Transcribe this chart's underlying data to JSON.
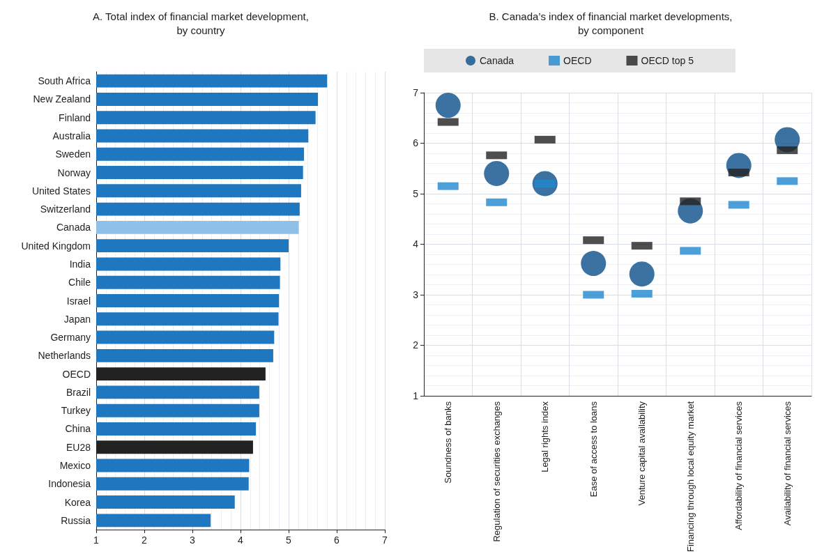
{
  "chart_data": [
    {
      "type": "bar",
      "title": "A. Total index of financial market development,\nby country",
      "orientation": "horizontal",
      "categories": [
        "South Africa",
        "New Zealand",
        "Finland",
        "Australia",
        "Sweden",
        "Norway",
        "United States",
        "Switzerland",
        "Canada",
        "United Kingdom",
        "India",
        "Chile",
        "Israel",
        "Japan",
        "Germany",
        "Netherlands",
        "OECD",
        "Brazil",
        "Turkey",
        "China",
        "EU28",
        "Mexico",
        "Indonesia",
        "Korea",
        "Russia"
      ],
      "values": [
        5.8,
        5.61,
        5.56,
        5.41,
        5.32,
        5.3,
        5.26,
        5.23,
        5.21,
        5.0,
        4.83,
        4.82,
        4.8,
        4.79,
        4.7,
        4.68,
        4.52,
        4.39,
        4.39,
        4.32,
        4.26,
        4.18,
        4.17,
        3.88,
        3.38
      ],
      "colors": [
        "#1f77c0",
        "#1f77c0",
        "#1f77c0",
        "#1f77c0",
        "#1f77c0",
        "#1f77c0",
        "#1f77c0",
        "#1f77c0",
        "#8fc1e8",
        "#1f77c0",
        "#1f77c0",
        "#1f77c0",
        "#1f77c0",
        "#1f77c0",
        "#1f77c0",
        "#1f77c0",
        "#222222",
        "#1f77c0",
        "#1f77c0",
        "#1f77c0",
        "#222222",
        "#1f77c0",
        "#1f77c0",
        "#1f77c0",
        "#1f77c0"
      ],
      "xlim": [
        1,
        7
      ],
      "xticks": [
        1,
        2,
        3,
        4,
        5,
        6,
        7
      ],
      "grid": "x",
      "legend": false
    },
    {
      "type": "scatter",
      "title": "B. Canada’s index of financial market developments,\nby component",
      "categories": [
        "Soundness of banks",
        "Regulation of securities exchanges",
        "Legal rights index",
        "Ease of access to loans",
        "Venture capital availability",
        "Financing through local equity market",
        "Affordability of financial services",
        "Availability of financial services"
      ],
      "series": [
        {
          "name": "Canada",
          "color": "#0b4f8a",
          "marker": "circle",
          "values": [
            6.75,
            5.4,
            5.2,
            3.62,
            3.41,
            4.66,
            5.56,
            6.07
          ]
        },
        {
          "name": "OECD",
          "color": "#1f87cf",
          "marker": "square",
          "values": [
            5.15,
            4.83,
            5.2,
            3.0,
            3.02,
            3.87,
            4.78,
            5.25
          ]
        },
        {
          "name": "OECD top 5",
          "color": "#222222",
          "marker": "square",
          "values": [
            6.42,
            5.76,
            6.07,
            4.08,
            3.97,
            4.85,
            5.42,
            5.86
          ]
        }
      ],
      "ylim": [
        1,
        7
      ],
      "yticks": [
        1,
        2,
        3,
        4,
        5,
        6,
        7
      ],
      "grid": true,
      "legend": "top"
    }
  ]
}
